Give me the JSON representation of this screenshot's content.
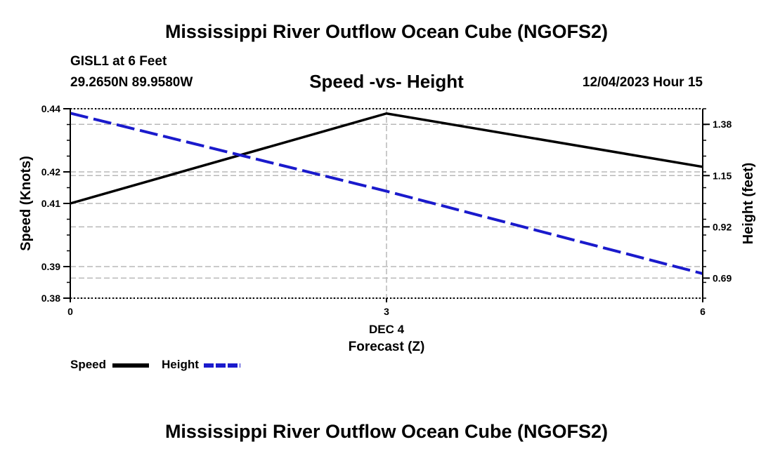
{
  "header": {
    "title": "Mississippi River Outflow Ocean Cube (NGOFS2)",
    "station": "GISL1 at 6 Feet",
    "coords": "29.2650N  89.9580W",
    "subtitle": "Speed -vs- Height",
    "datetime": "12/04/2023 Hour 15"
  },
  "footer": {
    "title": "Mississippi River Outflow Ocean Cube (NGOFS2)"
  },
  "legend": {
    "speed_label": "Speed",
    "height_label": "Height"
  },
  "colors": {
    "speed": "#000000",
    "height": "#1a1acc",
    "grid": "#b8b8b8"
  },
  "chart_data": {
    "type": "line",
    "title": "Speed -vs- Height",
    "xlabel": "Forecast (Z)",
    "xlabel_date": "DEC 4",
    "ylabel_left": "Speed (Knots)",
    "ylabel_right": "Height (feet)",
    "x": [
      0,
      3,
      6
    ],
    "x_ticks": [
      "0",
      "3",
      "6"
    ],
    "xlim": [
      0,
      6
    ],
    "ylim_left": [
      0.38,
      0.44
    ],
    "yticks_left": [
      "0.44",
      "0.42",
      "0.41",
      "0.39",
      "0.38"
    ],
    "ytick_values_left": [
      0.44,
      0.42,
      0.41,
      0.39,
      0.38
    ],
    "ylim_right": [
      0.6,
      1.45
    ],
    "yticks_right": [
      "1.38",
      "1.15",
      "0.92",
      "0.69"
    ],
    "ytick_values_right": [
      1.38,
      1.15,
      0.92,
      0.69
    ],
    "series": [
      {
        "name": "Speed",
        "axis": "left",
        "style": "solid",
        "values": [
          0.41,
          0.4385,
          0.4216
        ]
      },
      {
        "name": "Height",
        "axis": "right",
        "style": "dashed",
        "values": [
          1.43,
          1.08,
          0.71
        ]
      }
    ]
  }
}
